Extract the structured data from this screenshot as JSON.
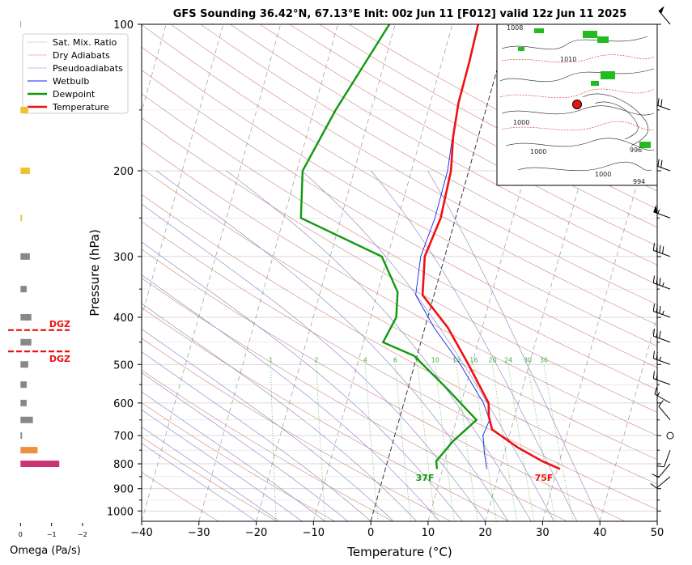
{
  "chart_data": {
    "type": "line",
    "title": "GFS Sounding 36.42°N, 67.13°E Init: 00z Jun 11 [F012] valid 12z Jun 11 2025",
    "xlabel": "Temperature (°C)",
    "ylabel": "Pressure (hPa)",
    "xlim": [
      -40,
      50
    ],
    "ylim": [
      1050,
      100
    ],
    "y_scale": "log",
    "x_ticks": [
      "−40",
      "−30",
      "−20",
      "−10",
      "0",
      "10",
      "20",
      "30",
      "40",
      "50"
    ],
    "y_ticks": [
      "100",
      "200",
      "300",
      "400",
      "500",
      "600",
      "700",
      "800",
      "900",
      "1000"
    ],
    "legend_position": "top-left",
    "legend": [
      "Sat. Mix. Ratio",
      "Dry Adiabats",
      "Pseudoadiabats",
      "Wetbulb",
      "Dewpoint",
      "Temperature"
    ],
    "colors": {
      "temperature": "#ee1111",
      "dewpoint": "#119911",
      "wetbulb": "#1122ee",
      "dry_adiabat": "#d08080",
      "pseudoadiabat": "#8080c8",
      "mixing_ratio": "#44aa44",
      "dgz": "#ee1111"
    },
    "series": [
      {
        "name": "Temperature",
        "points": [
          [
            30.5,
            820
          ],
          [
            27,
            790
          ],
          [
            22,
            740
          ],
          [
            16.7,
            680
          ],
          [
            15.5,
            640
          ],
          [
            14.8,
            600
          ],
          [
            9.4,
            500
          ],
          [
            4,
            420
          ],
          [
            -2,
            360
          ],
          [
            -3.5,
            300
          ],
          [
            -2.6,
            250
          ],
          [
            -3.1,
            200
          ],
          [
            -4.4,
            170
          ],
          [
            -5.1,
            145
          ],
          [
            -5.2,
            120
          ],
          [
            -5.5,
            100
          ]
        ]
      },
      {
        "name": "Dewpoint",
        "points": [
          [
            9,
            820
          ],
          [
            8.5,
            790
          ],
          [
            10.4,
            720
          ],
          [
            13.5,
            650
          ],
          [
            6.8,
            560
          ],
          [
            -0.5,
            480
          ],
          [
            -6.6,
            450
          ],
          [
            -5.5,
            400
          ],
          [
            -6.5,
            355
          ],
          [
            -11,
            300
          ],
          [
            -27,
            250
          ],
          [
            -29,
            200
          ],
          [
            -26.2,
            150
          ],
          [
            -21,
            100
          ]
        ]
      },
      {
        "name": "Wetbulb",
        "points": [
          [
            17.7,
            820
          ],
          [
            16.5,
            760
          ],
          [
            15.4,
            700
          ],
          [
            15.8,
            650
          ],
          [
            13.9,
            600
          ],
          [
            8,
            500
          ],
          [
            1.6,
            420
          ],
          [
            -3.2,
            360
          ],
          [
            -4.2,
            300
          ],
          [
            -3.6,
            250
          ],
          [
            -3.7,
            200
          ],
          [
            -4.5,
            170
          ],
          [
            -5.1,
            145
          ],
          [
            -5.2,
            120
          ],
          [
            -5.5,
            100
          ]
        ]
      }
    ],
    "surface_labels": {
      "temperature": "75F",
      "dewpoint": "37F"
    },
    "mixing_ratio_labels": [
      "1",
      "2",
      "4",
      "6",
      "8",
      "10",
      "13",
      "16",
      "20",
      "24",
      "30",
      "36"
    ],
    "omega": {
      "xlabel": "Omega (Pa/s)",
      "x_ticks": [
        "0",
        "−1",
        "−2"
      ],
      "xlim": [
        0.4,
        -2.0
      ],
      "dgz_label": "DGZ",
      "dgz_top_hpa": 425,
      "dgz_bottom_hpa": 470,
      "bars": [
        {
          "p": 100,
          "v": -0.02,
          "c": "#888888"
        },
        {
          "p": 150,
          "v": -0.25,
          "c": "#f0c030"
        },
        {
          "p": 200,
          "v": -0.3,
          "c": "#f0c030"
        },
        {
          "p": 250,
          "v": -0.05,
          "c": "#f0c030"
        },
        {
          "p": 300,
          "v": -0.3,
          "c": "#888888"
        },
        {
          "p": 350,
          "v": -0.2,
          "c": "#888888"
        },
        {
          "p": 400,
          "v": -0.35,
          "c": "#888888"
        },
        {
          "p": 450,
          "v": -0.35,
          "c": "#888888"
        },
        {
          "p": 500,
          "v": -0.25,
          "c": "#888888"
        },
        {
          "p": 550,
          "v": -0.2,
          "c": "#888888"
        },
        {
          "p": 600,
          "v": -0.2,
          "c": "#888888"
        },
        {
          "p": 650,
          "v": -0.4,
          "c": "#888888"
        },
        {
          "p": 700,
          "v": -0.05,
          "c": "#888888"
        },
        {
          "p": 750,
          "v": -0.55,
          "c": "#ee9040"
        },
        {
          "p": 800,
          "v": -1.25,
          "c": "#cc3377"
        }
      ]
    },
    "wind_barbs": [
      {
        "p": 100,
        "speed": 50,
        "dir": 320
      },
      {
        "p": 150,
        "speed": 70,
        "dir": 290
      },
      {
        "p": 200,
        "speed": 70,
        "dir": 290
      },
      {
        "p": 250,
        "speed": 55,
        "dir": 290
      },
      {
        "p": 300,
        "speed": 40,
        "dir": 290
      },
      {
        "p": 350,
        "speed": 35,
        "dir": 290
      },
      {
        "p": 400,
        "speed": 35,
        "dir": 290
      },
      {
        "p": 450,
        "speed": 30,
        "dir": 290
      },
      {
        "p": 500,
        "speed": 25,
        "dir": 290
      },
      {
        "p": 550,
        "speed": 20,
        "dir": 290
      },
      {
        "p": 600,
        "speed": 15,
        "dir": 300
      },
      {
        "p": 650,
        "speed": 10,
        "dir": 320
      },
      {
        "p": 700,
        "speed": 0,
        "dir": 0
      },
      {
        "p": 750,
        "speed": 10,
        "dir": 200
      },
      {
        "p": 800,
        "speed": 10,
        "dir": 220
      },
      {
        "p": 850,
        "speed": 10,
        "dir": 230
      }
    ],
    "inset_map": {
      "contour_labels": [
        "1008",
        "1010",
        "1000",
        "1000",
        "996",
        "1000",
        "994"
      ],
      "marker_color": "#ee1111"
    }
  }
}
